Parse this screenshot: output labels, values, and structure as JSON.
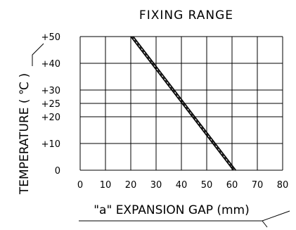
{
  "chart_data": {
    "type": "line",
    "title": "FIXING RANGE",
    "xlabel": "\"a\" EXPANSION GAP (mm)",
    "ylabel": "TEMPERATURE ( ℃ )",
    "xlim": [
      0,
      80
    ],
    "ylim": [
      0,
      50
    ],
    "x_ticks": [
      0,
      10,
      20,
      30,
      40,
      50,
      60,
      70,
      80
    ],
    "x_tick_labels": [
      "0",
      "10",
      "20",
      "30",
      "40",
      "50",
      "60",
      "70",
      "80"
    ],
    "y_ticks": [
      0,
      10,
      20,
      25,
      30,
      40,
      50
    ],
    "y_tick_labels": [
      "0",
      "+10",
      "+20",
      "+25",
      "+30",
      "+40",
      "+50"
    ],
    "grid": true,
    "series": [
      {
        "style": "solid",
        "x": [
          20,
          60.5
        ],
        "y": [
          50,
          0
        ]
      },
      {
        "style": "dashed",
        "x": [
          20.5,
          61
        ],
        "y": [
          50,
          0
        ]
      },
      {
        "style": "solid",
        "x": [
          21,
          61.5
        ],
        "y": [
          50,
          0
        ]
      }
    ]
  }
}
